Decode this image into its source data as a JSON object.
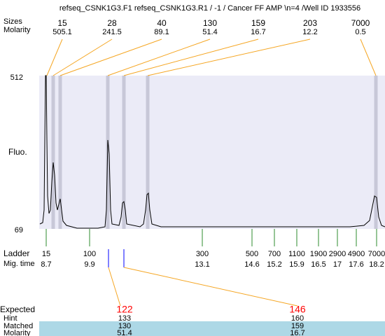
{
  "title": "refseq_CSNK1G3.F1  refseq_CSNK1G3.R1 / -1 / Cancer FF AMP \\n=4 /Well ID 1933556",
  "peaks": {
    "labels": [
      "Sizes",
      "Molarity"
    ],
    "sizes": [
      15,
      28,
      40,
      130,
      159,
      203,
      7000
    ],
    "molarity": [
      505.1,
      241.5,
      89.1,
      51.4,
      16.7,
      12.2,
      0.5
    ]
  },
  "fluo_axis": {
    "label": "Fluo.",
    "max": 512,
    "min": 69
  },
  "ladder": {
    "labels": [
      "Ladder",
      "Mig. time"
    ],
    "sizes": [
      15,
      100,
      300,
      500,
      700,
      1100,
      1900,
      2900,
      4900,
      7000
    ],
    "mig_times": [
      8.7,
      9.9,
      13.1,
      14.6,
      15.2,
      15.9,
      16.5,
      17,
      17.6,
      18.2
    ]
  },
  "expected": {
    "label": "Expected",
    "row_labels": [
      "Hint",
      "Matched",
      "Molarity"
    ],
    "columns": [
      {
        "expected": 122,
        "hint": 133,
        "matched": 130,
        "molarity": 51.4
      },
      {
        "expected": 146,
        "hint": 160,
        "matched": 159,
        "molarity": 16.7
      }
    ]
  }
}
